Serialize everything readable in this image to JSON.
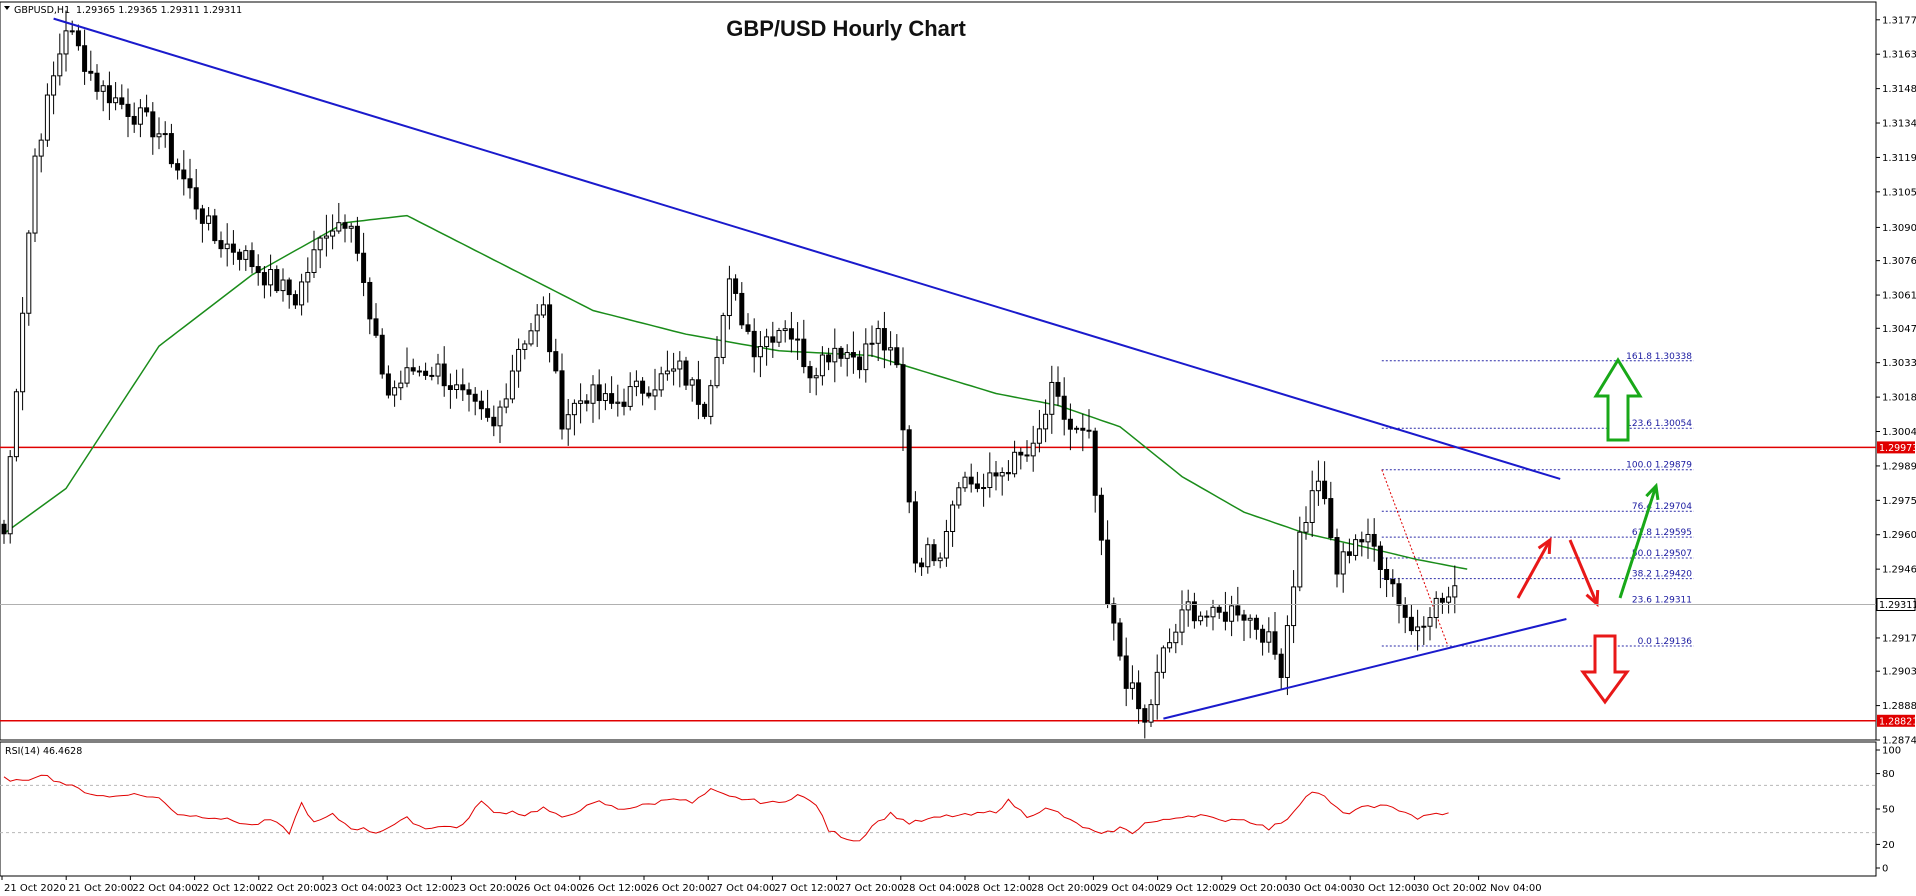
{
  "symbol_header": {
    "symbol": "GBPUSD,H1",
    "ohlc": "1.29365 1.29365 1.29311 1.29311"
  },
  "colors": {
    "background": "#ffffff",
    "candle": "#000000",
    "trendline": "#1a1acc",
    "moving_average": "#1a8c1a",
    "resistance_line": "#e00000",
    "support_line": "#e00000",
    "fib_lines": "#2a2aa8",
    "rsi_line": "#e00000",
    "arrow_green": "#18a818",
    "arrow_red": "#e81818"
  },
  "chart_data": {
    "type": "candlestick",
    "title": "GBP/USD Hourly Chart",
    "price_axis": {
      "ylim": [
        1.2874,
        1.3185
      ],
      "tick_labels": [
        "1.31775",
        "1.31630",
        "1.31485",
        "1.31340",
        "1.31195",
        "1.31050",
        "1.30900",
        "1.30760",
        "1.30615",
        "1.30475",
        "1.30330",
        "1.30185",
        "1.30040",
        "1.29895",
        "1.29750",
        "1.29605",
        "1.29460",
        "1.29315",
        "1.29170",
        "1.29030",
        "1.28885",
        "1.28740"
      ]
    },
    "time_axis": {
      "tick_labels": [
        "21 Oct 2020",
        "21 Oct 20:00",
        "22 Oct 04:00",
        "22 Oct 12:00",
        "22 Oct 20:00",
        "23 Oct 04:00",
        "23 Oct 12:00",
        "23 Oct 20:00",
        "26 Oct 04:00",
        "26 Oct 12:00",
        "26 Oct 20:00",
        "27 Oct 04:00",
        "27 Oct 12:00",
        "27 Oct 20:00",
        "28 Oct 04:00",
        "28 Oct 12:00",
        "28 Oct 20:00",
        "29 Oct 04:00",
        "29 Oct 12:00",
        "29 Oct 20:00",
        "30 Oct 04:00",
        "30 Oct 12:00",
        "30 Oct 20:00",
        "2 Nov 04:00"
      ]
    },
    "close_path": [
      [
        0,
        1.2961
      ],
      [
        5,
        1.312
      ],
      [
        10,
        1.3175
      ],
      [
        15,
        1.315
      ],
      [
        20,
        1.314
      ],
      [
        25,
        1.313
      ],
      [
        30,
        1.3105
      ],
      [
        34,
        1.3085
      ],
      [
        38,
        1.308
      ],
      [
        42,
        1.307
      ],
      [
        47,
        1.306
      ],
      [
        52,
        1.309
      ],
      [
        56,
        1.3095
      ],
      [
        59,
        1.305
      ],
      [
        62,
        1.302
      ],
      [
        66,
        1.303
      ],
      [
        70,
        1.303
      ],
      [
        75,
        1.3015
      ],
      [
        79,
        1.3005
      ],
      [
        83,
        1.304
      ],
      [
        87,
        1.3055
      ],
      [
        90,
        1.301
      ],
      [
        94,
        1.302
      ],
      [
        98,
        1.3015
      ],
      [
        101,
        1.302
      ],
      [
        105,
        1.3025
      ],
      [
        109,
        1.303
      ],
      [
        113,
        1.3015
      ],
      [
        117,
        1.3065
      ],
      [
        121,
        1.304
      ],
      [
        126,
        1.305
      ],
      [
        130,
        1.303
      ],
      [
        134,
        1.304
      ],
      [
        138,
        1.3035
      ],
      [
        141,
        1.3045
      ],
      [
        144,
        1.303
      ],
      [
        147,
        1.295
      ],
      [
        151,
        1.2955
      ],
      [
        154,
        1.2985
      ],
      [
        158,
        1.298
      ],
      [
        162,
        1.299
      ],
      [
        166,
        1.2995
      ],
      [
        169,
        1.302
      ],
      [
        172,
        1.3005
      ],
      [
        175,
        1.3
      ],
      [
        178,
        1.293
      ],
      [
        181,
        1.29
      ],
      [
        184,
        1.288
      ],
      [
        187,
        1.291
      ],
      [
        191,
        1.293
      ],
      [
        195,
        1.2925
      ],
      [
        199,
        1.293
      ],
      [
        203,
        1.292
      ],
      [
        206,
        1.2905
      ],
      [
        209,
        1.296
      ],
      [
        212,
        1.2985
      ],
      [
        215,
        1.2945
      ],
      [
        218,
        1.296
      ],
      [
        221,
        1.2955
      ],
      [
        224,
        1.294
      ],
      [
        227,
        1.292
      ],
      [
        230,
        1.293
      ],
      [
        234,
        1.2935
      ]
    ],
    "last_price": "1.29311",
    "moving_average": {
      "period": 100,
      "path": [
        [
          0,
          1.2961
        ],
        [
          10,
          1.298
        ],
        [
          25,
          1.304
        ],
        [
          40,
          1.307
        ],
        [
          55,
          1.3092
        ],
        [
          65,
          1.3095
        ],
        [
          80,
          1.3075
        ],
        [
          95,
          1.3055
        ],
        [
          110,
          1.3045
        ],
        [
          125,
          1.3038
        ],
        [
          140,
          1.3036
        ],
        [
          150,
          1.3028
        ],
        [
          160,
          1.302
        ],
        [
          170,
          1.3015
        ],
        [
          180,
          1.3006
        ],
        [
          190,
          1.2985
        ],
        [
          200,
          1.297
        ],
        [
          210,
          1.2961
        ],
        [
          220,
          1.2955
        ],
        [
          228,
          1.295
        ],
        [
          236,
          1.2946
        ]
      ]
    },
    "horizontal_levels": [
      {
        "name": "resistance",
        "price": 1.29973,
        "label": "1.29973"
      },
      {
        "name": "support",
        "price": 1.28821,
        "label": "1.28821"
      }
    ],
    "trendlines": [
      {
        "name": "bearish-trendline",
        "from": [
          8,
          1.3178
        ],
        "to": [
          251,
          1.2984
        ]
      },
      {
        "name": "bullish-support-line",
        "from": [
          187,
          1.2883
        ],
        "to": [
          252,
          1.2925
        ]
      }
    ],
    "fibonacci": {
      "start_index": 219,
      "end_index": 253,
      "levels": [
        {
          "label": "161.8 1.30338",
          "price": 1.30338
        },
        {
          "label": "123.6 1.30054",
          "price": 1.30054
        },
        {
          "label": "100.0 1.29879",
          "price": 1.29879
        },
        {
          "label": "76.4 1.29704",
          "price": 1.29704
        },
        {
          "label": "61.8 1.29595",
          "price": 1.29595
        },
        {
          "label": "50.0 1.29507",
          "price": 1.29507
        },
        {
          "label": "38.2 1.29420",
          "price": 1.2942
        },
        {
          "label": "23.6 1.29311",
          "price": 1.29311
        },
        {
          "label": "0.0 1.29136",
          "price": 1.29136
        }
      ]
    },
    "rsi": {
      "label": "RSI(14) 46.4628",
      "ylim": [
        0,
        100
      ],
      "tick_labels": [
        "100",
        "80",
        "50",
        "20",
        "0"
      ],
      "ticks": [
        100,
        80,
        50,
        20,
        0
      ],
      "levels": [
        70,
        30
      ],
      "values": [
        [
          0,
          76
        ],
        [
          3,
          73
        ],
        [
          6,
          80
        ],
        [
          8,
          75
        ],
        [
          11,
          69
        ],
        [
          14,
          63
        ],
        [
          17,
          60
        ],
        [
          20,
          63
        ],
        [
          23,
          61
        ],
        [
          25,
          59
        ],
        [
          28,
          46
        ],
        [
          31,
          44
        ],
        [
          34,
          43
        ],
        [
          37,
          40
        ],
        [
          40,
          36
        ],
        [
          43,
          41
        ],
        [
          46,
          30
        ],
        [
          48,
          55
        ],
        [
          50,
          38
        ],
        [
          53,
          45
        ],
        [
          56,
          34
        ],
        [
          58,
          33
        ],
        [
          60,
          30
        ],
        [
          63,
          37
        ],
        [
          65,
          42
        ],
        [
          68,
          33
        ],
        [
          70,
          36
        ],
        [
          73,
          34
        ],
        [
          75,
          42
        ],
        [
          77,
          58
        ],
        [
          79,
          46
        ],
        [
          82,
          48
        ],
        [
          84,
          45
        ],
        [
          87,
          51
        ],
        [
          90,
          42
        ],
        [
          93,
          50
        ],
        [
          96,
          56
        ],
        [
          99,
          50
        ],
        [
          102,
          52
        ],
        [
          105,
          55
        ],
        [
          108,
          60
        ],
        [
          111,
          55
        ],
        [
          114,
          66
        ],
        [
          117,
          60
        ],
        [
          120,
          58
        ],
        [
          122,
          56
        ],
        [
          125,
          55
        ],
        [
          128,
          62
        ],
        [
          131,
          54
        ],
        [
          133,
          32
        ],
        [
          136,
          25
        ],
        [
          138,
          23
        ],
        [
          140,
          36
        ],
        [
          143,
          46
        ],
        [
          146,
          38
        ],
        [
          149,
          41
        ],
        [
          152,
          44
        ],
        [
          156,
          45
        ],
        [
          160,
          48
        ],
        [
          162,
          57
        ],
        [
          165,
          44
        ],
        [
          168,
          50
        ],
        [
          170,
          47
        ],
        [
          172,
          40
        ],
        [
          174,
          35
        ],
        [
          177,
          28
        ],
        [
          180,
          34
        ],
        [
          182,
          30
        ],
        [
          184,
          38
        ],
        [
          187,
          40
        ],
        [
          190,
          44
        ],
        [
          193,
          45
        ],
        [
          196,
          40
        ],
        [
          199,
          42
        ],
        [
          202,
          38
        ],
        [
          204,
          33
        ],
        [
          207,
          42
        ],
        [
          209,
          55
        ],
        [
          211,
          65
        ],
        [
          213,
          60
        ],
        [
          215,
          50
        ],
        [
          217,
          46
        ],
        [
          220,
          53
        ],
        [
          223,
          52
        ],
        [
          226,
          48
        ],
        [
          228,
          42
        ],
        [
          231,
          46
        ],
        [
          233,
          46
        ]
      ]
    },
    "annotations": [
      {
        "name": "green-up-arrow-upper",
        "shape": "block-arrow-up",
        "color": "green"
      },
      {
        "name": "red-down-arrow-lower",
        "shape": "block-arrow-down",
        "color": "red"
      },
      {
        "name": "red-scenario-arrow-up",
        "shape": "line-arrow",
        "color": "red"
      },
      {
        "name": "red-scenario-arrow-down",
        "shape": "line-arrow",
        "color": "red"
      },
      {
        "name": "green-scenario-arrow-up",
        "shape": "line-arrow",
        "color": "green"
      }
    ]
  }
}
